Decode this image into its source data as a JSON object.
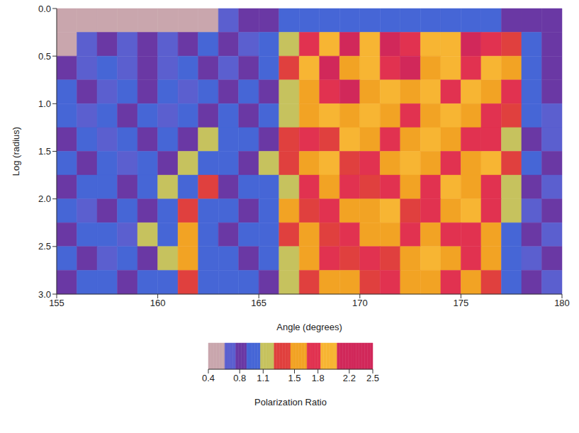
{
  "chart_data": {
    "type": "heatmap",
    "x_label": "Angle (degrees)",
    "y_label": "Log (radius)",
    "xlim": [
      155,
      180
    ],
    "xticks": [
      155,
      160,
      165,
      170,
      175,
      180
    ],
    "ylim": [
      0,
      3
    ],
    "yticks": [
      {
        "value": 0,
        "label": "0.0"
      },
      {
        "value": 0.5,
        "label": "0.5"
      },
      {
        "value": 1,
        "label": "1.0"
      },
      {
        "value": 1.5,
        "label": "1.5"
      },
      {
        "value": 2,
        "label": "2.0"
      },
      {
        "value": 2.5,
        "label": "2.5"
      },
      {
        "value": 3,
        "label": "3.0"
      }
    ],
    "x_bins": [
      155,
      156,
      157,
      158,
      159,
      160,
      161,
      162,
      163,
      164,
      165,
      166,
      167,
      168,
      169,
      170,
      171,
      172,
      173,
      174,
      175,
      176,
      177,
      178,
      179,
      180
    ],
    "y_bins": [
      0,
      0.25,
      0.5,
      0.75,
      1,
      1.25,
      1.5,
      1.75,
      2,
      2.25,
      2.5,
      2.75,
      3
    ],
    "cells": [
      [
        0.45,
        0.45,
        0.45,
        0.45,
        0.45,
        0.45,
        0.45,
        0.5,
        0.6,
        0.8,
        0.8,
        0.9,
        0.9,
        0.9,
        1.0,
        1.0,
        0.9,
        1.0,
        0.9,
        0.9,
        1.0,
        0.9,
        0.8,
        0.8,
        0.8
      ],
      [
        0.5,
        0.7,
        0.8,
        0.7,
        0.8,
        0.7,
        0.8,
        0.9,
        0.8,
        0.7,
        0.9,
        1.2,
        1.7,
        2.0,
        2.2,
        1.9,
        2.1,
        1.8,
        2.0,
        1.9,
        2.1,
        1.8,
        1.3,
        0.9,
        0.8
      ],
      [
        0.8,
        0.7,
        0.9,
        0.7,
        0.8,
        0.7,
        0.9,
        0.8,
        0.7,
        0.8,
        1.0,
        1.3,
        1.9,
        2.2,
        1.6,
        2.0,
        1.7,
        2.1,
        1.6,
        1.9,
        1.7,
        2.0,
        1.5,
        1.0,
        0.8
      ],
      [
        0.9,
        0.8,
        0.7,
        0.9,
        0.8,
        0.9,
        0.7,
        0.9,
        0.8,
        0.9,
        0.8,
        1.2,
        1.5,
        1.8,
        2.1,
        1.6,
        1.9,
        1.6,
        2.0,
        1.7,
        1.9,
        1.6,
        1.7,
        1.0,
        0.8
      ],
      [
        0.9,
        0.7,
        1.0,
        0.8,
        1.0,
        0.7,
        0.9,
        0.8,
        1.0,
        0.8,
        0.9,
        1.1,
        1.6,
        1.9,
        1.5,
        2.0,
        1.6,
        1.8,
        1.5,
        1.9,
        1.6,
        1.8,
        1.4,
        0.9,
        0.7
      ],
      [
        0.8,
        1.0,
        0.7,
        0.9,
        0.8,
        1.0,
        0.8,
        1.1,
        0.9,
        1.0,
        0.8,
        1.3,
        1.7,
        1.4,
        1.9,
        1.5,
        1.8,
        1.6,
        1.9,
        1.5,
        1.8,
        1.7,
        1.2,
        0.8,
        0.7
      ],
      [
        1.0,
        0.8,
        0.9,
        0.7,
        1.0,
        0.8,
        1.2,
        0.9,
        1.0,
        0.8,
        1.1,
        1.4,
        1.6,
        1.9,
        1.4,
        1.7,
        1.5,
        1.9,
        1.6,
        1.8,
        1.5,
        1.9,
        1.3,
        0.9,
        0.8
      ],
      [
        0.8,
        0.9,
        1.0,
        0.8,
        0.9,
        1.1,
        0.9,
        1.3,
        0.8,
        1.0,
        0.9,
        1.2,
        1.8,
        1.5,
        1.7,
        1.4,
        1.8,
        1.5,
        1.7,
        1.9,
        1.6,
        1.8,
        1.2,
        0.8,
        0.7
      ],
      [
        0.9,
        0.7,
        0.8,
        1.0,
        0.8,
        1.0,
        1.4,
        0.9,
        1.0,
        0.8,
        1.0,
        1.5,
        1.4,
        1.8,
        1.5,
        1.6,
        1.9,
        1.4,
        1.8,
        1.6,
        1.9,
        1.7,
        1.1,
        0.7,
        0.8
      ],
      [
        0.8,
        1.0,
        0.9,
        0.7,
        1.1,
        0.9,
        1.6,
        1.0,
        0.8,
        1.0,
        0.9,
        1.3,
        1.6,
        1.4,
        1.7,
        1.5,
        1.6,
        1.8,
        1.5,
        1.7,
        1.8,
        1.6,
        1.0,
        0.8,
        0.7
      ],
      [
        1.0,
        0.8,
        0.7,
        0.9,
        0.8,
        1.2,
        1.5,
        0.9,
        1.0,
        0.8,
        1.0,
        1.2,
        1.5,
        1.7,
        1.3,
        1.8,
        1.4,
        1.6,
        1.9,
        1.5,
        1.7,
        1.5,
        0.9,
        0.7,
        0.8
      ],
      [
        0.8,
        0.9,
        1.0,
        0.8,
        0.9,
        1.0,
        1.3,
        1.0,
        0.9,
        1.0,
        0.8,
        1.1,
        1.4,
        1.6,
        1.5,
        1.4,
        1.7,
        1.5,
        1.6,
        1.8,
        1.6,
        1.4,
        0.9,
        0.8,
        0.7
      ]
    ],
    "colorbar": {
      "label": "Polarization Ratio",
      "range": [
        0.4,
        2.5
      ],
      "ticks": [
        0.4,
        0.8,
        1.1,
        1.5,
        1.8,
        2.2,
        2.5
      ]
    }
  }
}
